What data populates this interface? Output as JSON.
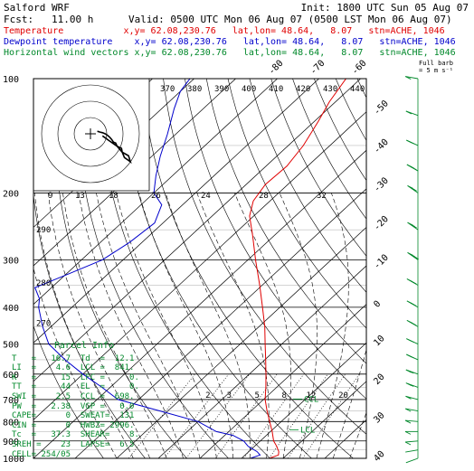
{
  "header": {
    "model": "Salford WRF",
    "fcst": "Fcst:   11.00 h",
    "init": "Init: 1800 UTC Sun 05 Aug 07",
    "valid": "Valid: 0500 UTC Mon 06 Aug 07 (0500 LST Mon 06 Aug 07)",
    "line_temp": "Temperature           x,y= 62.08,230.76   lat,lon= 48.64,   8.07   stn=ACHE, 1046",
    "line_dew": "Dewpoint temperature    x,y= 62.08,230.76   lat,lon= 48.64,   8.07   stn=ACHE, 1046",
    "line_wind": "Horizontal wind vectors x,y= 62.08,230.76   lat,lon= 48.64,   8.07   stn=ACHE, 1046",
    "colors": {
      "temperature": "#e00000",
      "dewpoint": "#0000cc",
      "wind": "#00882a",
      "text": "#000000"
    }
  },
  "parcel_info": {
    "title": "Parcel Info",
    "rows": [
      "T   =   16.7  Td  =  12.1",
      "LI  =    4.6  LCL =  841.",
      "K   =     15  LFC =     0.",
      "TT  =     44  EL  =     0.",
      "SWI =    2.5  CCL =  698.",
      "PW  =   2.38  VGP =   0.0",
      "CAPE=      0  SWEAT=  131",
      "CIN =      0  HWBZ= 2996.",
      "Tc  =   37.3  SHEAR=    8.",
      "SREH =    23  LAPSE=  6.5",
      "CELL= 254/05"
    ]
  },
  "full_barb_label": "Full barb\n= 5 m s⁻¹",
  "chart_data": {
    "type": "line",
    "title": "",
    "xlabel": "",
    "ylabel": "",
    "y_axis": "pressure (hPa, log scale)",
    "ylim": [
      1000,
      100
    ],
    "xlim_at_1000hPa": [
      -40,
      40
    ],
    "pressure_ticks": [
      100,
      200,
      300,
      400,
      500,
      600,
      700,
      800,
      900,
      1000
    ],
    "isotherm_labels": [
      -80,
      -70,
      -60,
      -50,
      -40,
      -30,
      -20,
      -10,
      0,
      10,
      20,
      30,
      40
    ],
    "theta_labels": [
      370,
      380,
      390,
      400,
      410,
      420,
      430,
      440
    ],
    "mixing_ratio_labels": [
      2,
      3,
      5,
      8,
      12,
      20
    ],
    "theta_e_labels": [
      9,
      13,
      18,
      26,
      24,
      28,
      32
    ],
    "height_labels": [
      {
        "p": 250,
        "text": "290"
      },
      {
        "p": 345,
        "text": "280"
      },
      {
        "p": 440,
        "text": "270"
      }
    ],
    "series": [
      {
        "name": "Temperature",
        "color": "#e00000",
        "points": [
          {
            "p": 1000,
            "t": 16.7
          },
          {
            "p": 980,
            "t": 18.0
          },
          {
            "p": 960,
            "t": 17.2
          },
          {
            "p": 925,
            "t": 15.0
          },
          {
            "p": 900,
            "t": 13.2
          },
          {
            "p": 850,
            "t": 10.4
          },
          {
            "p": 800,
            "t": 7.2
          },
          {
            "p": 750,
            "t": 3.8
          },
          {
            "p": 700,
            "t": 0.4
          },
          {
            "p": 650,
            "t": -2.6
          },
          {
            "p": 600,
            "t": -6.0
          },
          {
            "p": 550,
            "t": -9.8
          },
          {
            "p": 500,
            "t": -14.0
          },
          {
            "p": 450,
            "t": -18.6
          },
          {
            "p": 400,
            "t": -24.2
          },
          {
            "p": 350,
            "t": -30.6
          },
          {
            "p": 300,
            "t": -38.2
          },
          {
            "p": 260,
            "t": -45.0
          },
          {
            "p": 230,
            "t": -51.0
          },
          {
            "p": 210,
            "t": -54.0
          },
          {
            "p": 190,
            "t": -55.4
          },
          {
            "p": 170,
            "t": -55.0
          },
          {
            "p": 150,
            "t": -56.4
          },
          {
            "p": 130,
            "t": -59.0
          },
          {
            "p": 115,
            "t": -61.5
          },
          {
            "p": 100,
            "t": -63.5
          }
        ]
      },
      {
        "name": "Dewpoint temperature",
        "color": "#0000cc",
        "points": [
          {
            "p": 1000,
            "t": 12.1
          },
          {
            "p": 980,
            "t": 13.6
          },
          {
            "p": 960,
            "t": 12.0
          },
          {
            "p": 930,
            "t": 8.5
          },
          {
            "p": 900,
            "t": 6.0
          },
          {
            "p": 870,
            "t": 2.0
          },
          {
            "p": 850,
            "t": -3.0
          },
          {
            "p": 800,
            "t": -10.0
          },
          {
            "p": 750,
            "t": -22.0
          },
          {
            "p": 700,
            "t": -35.0
          },
          {
            "p": 650,
            "t": -42.0
          },
          {
            "p": 600,
            "t": -50.0
          },
          {
            "p": 550,
            "t": -58.0
          },
          {
            "p": 500,
            "t": -66.0
          },
          {
            "p": 450,
            "t": -72.0
          },
          {
            "p": 400,
            "t": -78.0
          },
          {
            "p": 380,
            "t": -80.0
          },
          {
            "p": 355,
            "t": -84.0
          },
          {
            "p": 330,
            "t": -80.0
          },
          {
            "p": 300,
            "t": -75.0
          },
          {
            "p": 270,
            "t": -73.0
          },
          {
            "p": 240,
            "t": -72.0
          },
          {
            "p": 215,
            "t": -75.0
          },
          {
            "p": 200,
            "t": -80.0
          },
          {
            "p": 180,
            "t": -84.0
          },
          {
            "p": 160,
            "t": -88.0
          },
          {
            "p": 140,
            "t": -92.0
          },
          {
            "p": 120,
            "t": -97.0
          },
          {
            "p": 108,
            "t": -100.0
          },
          {
            "p": 100,
            "t": -101.0
          }
        ]
      }
    ],
    "wind_series": {
      "name": "Horizontal wind vectors",
      "color": "#00882a",
      "points": [
        {
          "p": 1000,
          "dir": 250,
          "spd": 3
        },
        {
          "p": 950,
          "dir": 260,
          "spd": 4
        },
        {
          "p": 900,
          "dir": 265,
          "spd": 5
        },
        {
          "p": 850,
          "dir": 270,
          "spd": 6
        },
        {
          "p": 800,
          "dir": 275,
          "spd": 7
        },
        {
          "p": 750,
          "dir": 280,
          "spd": 8
        },
        {
          "p": 700,
          "dir": 285,
          "spd": 9
        },
        {
          "p": 650,
          "dir": 290,
          "spd": 10
        },
        {
          "p": 600,
          "dir": 290,
          "spd": 11
        },
        {
          "p": 550,
          "dir": 295,
          "spd": 12
        },
        {
          "p": 500,
          "dir": 295,
          "spd": 14
        },
        {
          "p": 450,
          "dir": 300,
          "spd": 15
        },
        {
          "p": 400,
          "dir": 300,
          "spd": 17
        },
        {
          "p": 350,
          "dir": 300,
          "spd": 18
        },
        {
          "p": 300,
          "dir": 305,
          "spd": 20
        },
        {
          "p": 250,
          "dir": 305,
          "spd": 19
        },
        {
          "p": 200,
          "dir": 305,
          "spd": 17
        },
        {
          "p": 175,
          "dir": 300,
          "spd": 15
        },
        {
          "p": 150,
          "dir": 295,
          "spd": 12
        },
        {
          "p": 125,
          "dir": 290,
          "spd": 8
        },
        {
          "p": 100,
          "dir": 280,
          "spd": 5
        }
      ]
    },
    "lcl_marker": {
      "label": "LCL",
      "p": 841
    },
    "ccl_marker": {
      "label": "CCL",
      "p": 698
    }
  }
}
